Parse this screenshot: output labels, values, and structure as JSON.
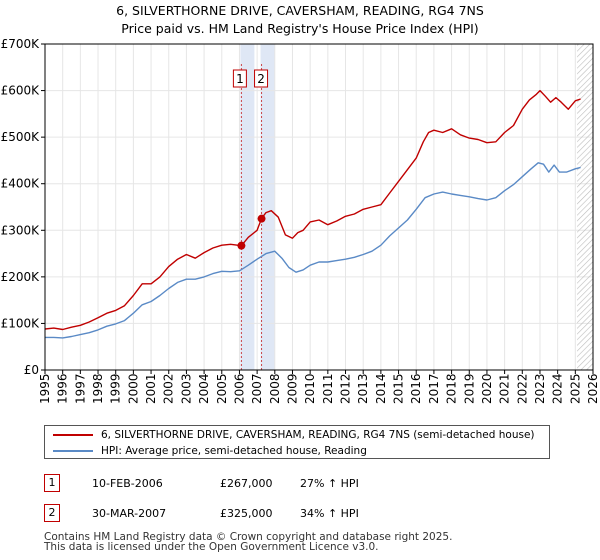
{
  "title_line1": "6, SILVERTHORNE DRIVE, CAVERSHAM, READING, RG4 7NS",
  "title_line2": "Price paid vs. HM Land Registry's House Price Index (HPI)",
  "colors": {
    "property": "#c00000",
    "hpi": "#5a8ac6",
    "marker_band": "#dce4f4",
    "grid": "#e6e6e6"
  },
  "chart_data": {
    "type": "line",
    "title": "Price paid vs. HM Land Registry's House Price Index (HPI)",
    "xlabel": "",
    "ylabel": "",
    "xlim": [
      1995,
      2026
    ],
    "ylim": [
      0,
      700000
    ],
    "yticks": [
      0,
      100000,
      200000,
      300000,
      400000,
      500000,
      600000,
      700000
    ],
    "ytick_labels": [
      "£0",
      "£100K",
      "£200K",
      "£300K",
      "£400K",
      "£500K",
      "£600K",
      "£700K"
    ],
    "xticks": [
      1995,
      1996,
      1997,
      1998,
      1999,
      2000,
      2001,
      2002,
      2003,
      2004,
      2005,
      2006,
      2007,
      2008,
      2009,
      2010,
      2011,
      2012,
      2013,
      2014,
      2015,
      2016,
      2017,
      2018,
      2019,
      2020,
      2021,
      2022,
      2023,
      2024,
      2025,
      2026
    ],
    "xtick_labels": [
      "1995",
      "1996",
      "1997",
      "1998",
      "1999",
      "2000",
      "2001",
      "2002",
      "2003",
      "2004",
      "2005",
      "2006",
      "2007",
      "2008",
      "2009",
      "2010",
      "2011",
      "2012",
      "2013",
      "2014",
      "2015",
      "2016",
      "2017",
      "2018",
      "2019",
      "2020",
      "2021",
      "2022",
      "2023",
      "2024",
      "2025",
      "2026"
    ],
    "forecast_start": 2025.1,
    "series": [
      {
        "name": "6, SILVERTHORNE DRIVE, CAVERSHAM, READING, RG4 7NS (semi-detached house)",
        "color": "#c00000",
        "x": [
          1995.0,
          1995.5,
          1996.0,
          1996.5,
          1997.0,
          1997.5,
          1998.0,
          1998.5,
          1999.0,
          1999.5,
          2000.0,
          2000.5,
          2001.0,
          2001.5,
          2002.0,
          2002.5,
          2003.0,
          2003.5,
          2004.0,
          2004.5,
          2005.0,
          2005.5,
          2006.11,
          2006.5,
          2007.0,
          2007.25,
          2007.5,
          2007.8,
          2008.2,
          2008.6,
          2009.0,
          2009.3,
          2009.6,
          2010.0,
          2010.5,
          2011.0,
          2011.5,
          2012.0,
          2012.5,
          2013.0,
          2013.5,
          2014.0,
          2014.5,
          2015.0,
          2015.5,
          2016.0,
          2016.4,
          2016.7,
          2017.0,
          2017.5,
          2018.0,
          2018.5,
          2019.0,
          2019.5,
          2020.0,
          2020.5,
          2021.0,
          2021.5,
          2022.0,
          2022.4,
          2022.8,
          2023.0,
          2023.3,
          2023.6,
          2023.9,
          2024.2,
          2024.6,
          2025.0,
          2025.3
        ],
        "values": [
          88000,
          90000,
          87000,
          92000,
          96000,
          103000,
          112000,
          122000,
          128000,
          138000,
          160000,
          185000,
          185000,
          200000,
          222000,
          238000,
          248000,
          240000,
          252000,
          262000,
          268000,
          270000,
          267000,
          285000,
          300000,
          325000,
          338000,
          342000,
          328000,
          290000,
          283000,
          295000,
          300000,
          318000,
          322000,
          312000,
          320000,
          330000,
          335000,
          345000,
          350000,
          355000,
          380000,
          405000,
          430000,
          455000,
          490000,
          510000,
          515000,
          510000,
          518000,
          505000,
          498000,
          495000,
          488000,
          490000,
          510000,
          525000,
          560000,
          580000,
          592000,
          600000,
          588000,
          575000,
          585000,
          575000,
          560000,
          578000,
          582000
        ]
      },
      {
        "name": "HPI: Average price, semi-detached house, Reading",
        "color": "#5a8ac6",
        "x": [
          1995.0,
          1995.5,
          1996.0,
          1996.5,
          1997.0,
          1997.5,
          1998.0,
          1998.5,
          1999.0,
          1999.5,
          2000.0,
          2000.5,
          2001.0,
          2001.5,
          2002.0,
          2002.5,
          2003.0,
          2003.5,
          2004.0,
          2004.5,
          2005.0,
          2005.5,
          2006.0,
          2006.5,
          2007.0,
          2007.5,
          2008.0,
          2008.4,
          2008.8,
          2009.2,
          2009.6,
          2010.0,
          2010.5,
          2011.0,
          2011.5,
          2012.0,
          2012.5,
          2013.0,
          2013.5,
          2014.0,
          2014.5,
          2015.0,
          2015.5,
          2016.0,
          2016.5,
          2017.0,
          2017.5,
          2018.0,
          2018.5,
          2019.0,
          2019.5,
          2020.0,
          2020.5,
          2021.0,
          2021.5,
          2022.0,
          2022.5,
          2022.9,
          2023.2,
          2023.5,
          2023.8,
          2024.1,
          2024.5,
          2025.0,
          2025.3
        ],
        "values": [
          70000,
          70000,
          69000,
          72000,
          76000,
          80000,
          86000,
          94000,
          99000,
          106000,
          122000,
          140000,
          147000,
          160000,
          175000,
          188000,
          195000,
          195000,
          200000,
          207000,
          212000,
          211000,
          213000,
          225000,
          238000,
          250000,
          255000,
          240000,
          220000,
          210000,
          215000,
          225000,
          232000,
          232000,
          235000,
          238000,
          242000,
          248000,
          255000,
          268000,
          288000,
          305000,
          322000,
          345000,
          370000,
          378000,
          382000,
          378000,
          375000,
          372000,
          368000,
          365000,
          370000,
          385000,
          398000,
          415000,
          432000,
          445000,
          442000,
          425000,
          440000,
          425000,
          425000,
          432000,
          435000
        ]
      }
    ],
    "sales": [
      {
        "label": "1",
        "x": 2006.11,
        "value": 267000,
        "date": "10-FEB-2006",
        "price": "£267,000",
        "hpi": "27% ↑ HPI"
      },
      {
        "label": "2",
        "x": 2007.25,
        "value": 325000,
        "date": "30-MAR-2007",
        "price": "£325,000",
        "hpi": "34% ↑ HPI"
      }
    ]
  },
  "legend": {
    "property_label": "6, SILVERTHORNE DRIVE, CAVERSHAM, READING, RG4 7NS (semi-detached house)",
    "hpi_label": "HPI: Average price, semi-detached house, Reading"
  },
  "footer": {
    "line1": "Contains HM Land Registry data © Crown copyright and database right 2025.",
    "line2": "This data is licensed under the Open Government Licence v3.0."
  }
}
